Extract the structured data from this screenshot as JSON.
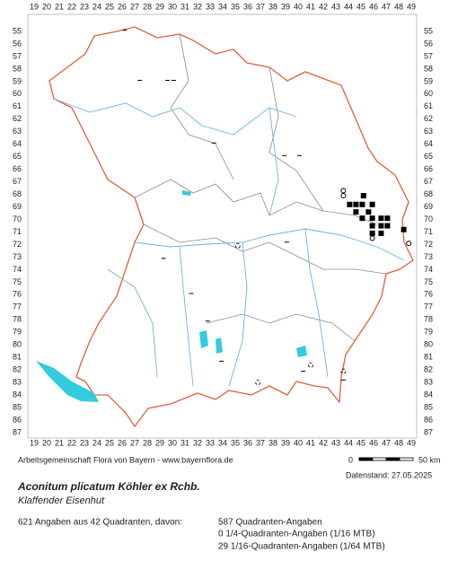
{
  "grid_labels": {
    "columns": [
      19,
      20,
      21,
      22,
      23,
      24,
      25,
      26,
      27,
      28,
      29,
      30,
      31,
      32,
      33,
      34,
      35,
      36,
      37,
      38,
      39,
      40,
      41,
      42,
      43,
      44,
      45,
      46,
      47,
      48,
      49
    ],
    "rows": [
      55,
      56,
      57,
      58,
      59,
      60,
      61,
      62,
      63,
      64,
      65,
      66,
      67,
      68,
      69,
      70,
      71,
      72,
      73,
      74,
      75,
      76,
      77,
      78,
      79,
      80,
      81,
      82,
      83,
      84,
      85,
      86,
      87
    ]
  },
  "occurrences": [
    {
      "col": 43.6,
      "row": 67.7,
      "symbol": "open"
    },
    {
      "col": 43.6,
      "row": 68.1,
      "symbol": "open"
    },
    {
      "col": 45.2,
      "row": 68.1,
      "symbol": "filled"
    },
    {
      "col": 44.1,
      "row": 68.8,
      "symbol": "filled"
    },
    {
      "col": 44.6,
      "row": 68.8,
      "symbol": "filled"
    },
    {
      "col": 45.1,
      "row": 68.8,
      "symbol": "filled"
    },
    {
      "col": 45.9,
      "row": 68.8,
      "symbol": "filled"
    },
    {
      "col": 44.6,
      "row": 69.4,
      "symbol": "filled"
    },
    {
      "col": 45.6,
      "row": 69.4,
      "symbol": "filled"
    },
    {
      "col": 45.1,
      "row": 69.9,
      "symbol": "filled"
    },
    {
      "col": 45.9,
      "row": 69.9,
      "symbol": "filled"
    },
    {
      "col": 46.6,
      "row": 69.9,
      "symbol": "filled"
    },
    {
      "col": 47.1,
      "row": 69.9,
      "symbol": "filled"
    },
    {
      "col": 45.9,
      "row": 70.5,
      "symbol": "filled"
    },
    {
      "col": 46.6,
      "row": 70.5,
      "symbol": "filled"
    },
    {
      "col": 47.1,
      "row": 70.5,
      "symbol": "filled"
    },
    {
      "col": 48.4,
      "row": 70.8,
      "symbol": "filled"
    },
    {
      "col": 45.9,
      "row": 71.1,
      "symbol": "filled"
    },
    {
      "col": 46.6,
      "row": 71.1,
      "symbol": "filled"
    },
    {
      "col": 45.9,
      "row": 71.5,
      "symbol": "open"
    },
    {
      "col": 48.8,
      "row": 71.9,
      "symbol": "open"
    },
    {
      "col": 26.2,
      "row": 54.9,
      "symbol": "dash"
    },
    {
      "col": 27.4,
      "row": 58.9,
      "symbol": "dash"
    },
    {
      "col": 29.6,
      "row": 58.9,
      "symbol": "dash"
    },
    {
      "col": 30.1,
      "row": 58.9,
      "symbol": "dash"
    },
    {
      "col": 33.3,
      "row": 63.9,
      "symbol": "dash"
    },
    {
      "col": 38.9,
      "row": 64.9,
      "symbol": "dash"
    },
    {
      "col": 40.1,
      "row": 64.9,
      "symbol": "dash"
    },
    {
      "col": 39.1,
      "row": 71.8,
      "symbol": "dash"
    },
    {
      "col": 29.3,
      "row": 73.1,
      "symbol": "dash"
    },
    {
      "col": 31.5,
      "row": 75.9,
      "symbol": "dash"
    },
    {
      "col": 32.8,
      "row": 78.1,
      "symbol": "dash"
    },
    {
      "col": 33.9,
      "row": 81.3,
      "symbol": "dash"
    },
    {
      "col": 40.4,
      "row": 82.1,
      "symbol": "dash"
    },
    {
      "col": 43.6,
      "row": 82.8,
      "symbol": "dash"
    },
    {
      "col": 35.2,
      "row": 72.1,
      "symbol": "question"
    },
    {
      "col": 41.0,
      "row": 81.6,
      "symbol": "question"
    },
    {
      "col": 43.6,
      "row": 82.1,
      "symbol": "question"
    },
    {
      "col": 36.8,
      "row": 83.0,
      "symbol": "question"
    }
  ],
  "footer": {
    "credits": "Arbeitsgemeinschaft Flora von Bayern - www.bayernflora.de",
    "scale_start": "0",
    "scale_end": "50 km",
    "date": "Datenstand: 27.05.2025"
  },
  "species": {
    "scientific_name": "Aconitum plicatum Köhler ex Rchb.",
    "common_name": "Klaffender Eisenhut"
  },
  "statistics": {
    "summary": "621 Angaben aus 42 Quadranten, davon:",
    "lines": [
      "587 Quadranten-Angaben",
      "0 1/4-Quadranten-Angaben (1/16 MTB)",
      "29 1/16-Quadranten-Angaben (1/64 MTB)"
    ]
  }
}
